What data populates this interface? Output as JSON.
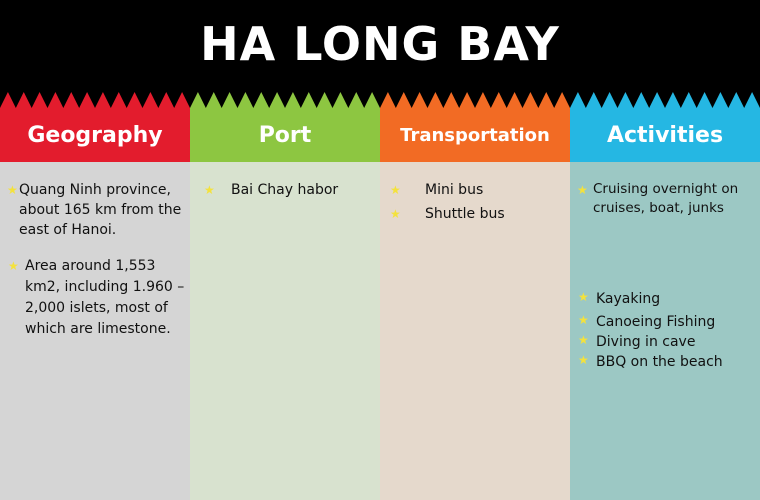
{
  "title": "HA LONG BAY",
  "colors": {
    "background": "#000000",
    "geography": "#e31c2d",
    "port": "#8dc641",
    "transportation": "#f26b24",
    "activities": "#25b7e3",
    "geography_body": "#d5d5d5",
    "port_body": "#d8e2cf",
    "transportation_body": "#e5d9cc",
    "activities_body": "#9cc8c4",
    "star": "#f4e23c"
  },
  "columns": [
    {
      "key": "geography",
      "header": "Geography",
      "items": [
        "Quang Ninh province, about 165 km from the east of Hanoi.",
        "Area around 1,553 km2, including 1.960 – 2,000 islets, most of which are limestone."
      ]
    },
    {
      "key": "port",
      "header": "Port",
      "items": [
        "Bai Chay habor"
      ]
    },
    {
      "key": "transportation",
      "header": "Transportation",
      "items": [
        "Mini bus",
        "Shuttle bus"
      ]
    },
    {
      "key": "activities",
      "header": "Activities",
      "items": [
        "Cruising overnight on cruises, boat, junks",
        "Kayaking",
        "Canoeing Fishing",
        "Diving in cave",
        "BBQ on the beach"
      ]
    }
  ]
}
